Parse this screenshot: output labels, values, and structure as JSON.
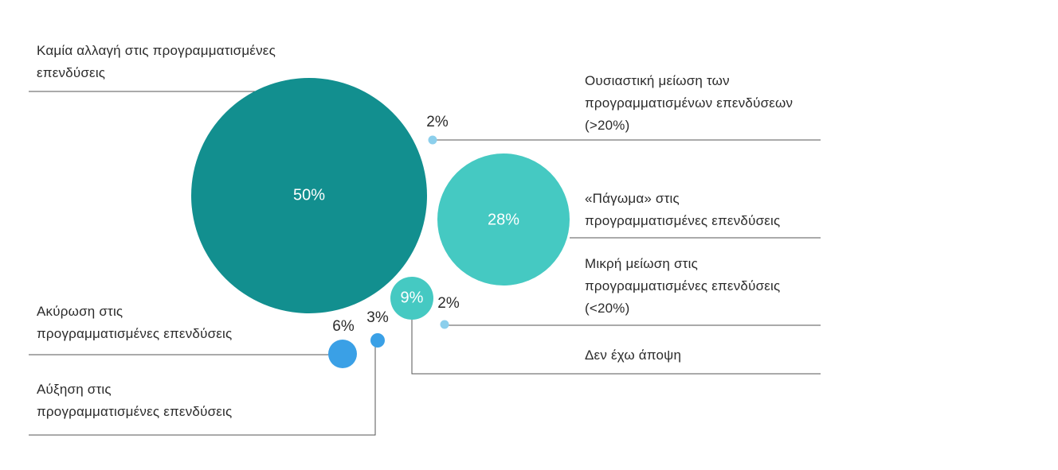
{
  "chart_data": {
    "type": "bubble",
    "categories": [
      "Καμία αλλαγή στις προγραμματισμένες επενδύσεις",
      "Ουσιαστική μείωση των προγραμματισμένων επενδύσεων (>20%)",
      "«Πάγωμα» στις προγραμματισμένες επενδύσεις",
      "Μικρή μείωση στις προγραμματισμένες επενδύσεις (<20%)",
      "Δεν έχω άποψη",
      "Ακύρωση στις προγραμματισμένες επενδύσεις",
      "Αύξηση στις προγραμματισμένες επενδύσεις"
    ],
    "values": [
      50,
      2,
      28,
      2,
      9,
      6,
      3
    ],
    "value_labels": [
      "50%",
      "2%",
      "28%",
      "2%",
      "9%",
      "6%",
      "3%"
    ],
    "colors": [
      "#128f8f",
      "#8ccfec",
      "#45c9c2",
      "#8ccfec",
      "#45c9c2",
      "#3aa0e6",
      "#3aa0e6"
    ]
  },
  "labels": {
    "no_change": [
      "Καμία αλλαγή στις προγραμματισμένες",
      "επενδύσεις"
    ],
    "big_cut": [
      "Ουσιαστική μείωση των",
      "προγραμματισμένων επενδύσεων",
      "(>20%)"
    ],
    "freeze": [
      "«Πάγωμα» στις",
      "προγραμματισμένες επενδύσεις"
    ],
    "small_cut": [
      "Μικρή μείωση στις",
      "προγραμματισμένες επενδύσεις",
      "(<20%)"
    ],
    "no_opinion": [
      "Δεν έχω άποψη"
    ],
    "cancel": [
      "Ακύρωση στις",
      "προγραμματισμένες επενδύσεις"
    ],
    "increase": [
      "Αύξηση στις",
      "προγραμματισμένες επενδύσεις"
    ]
  }
}
